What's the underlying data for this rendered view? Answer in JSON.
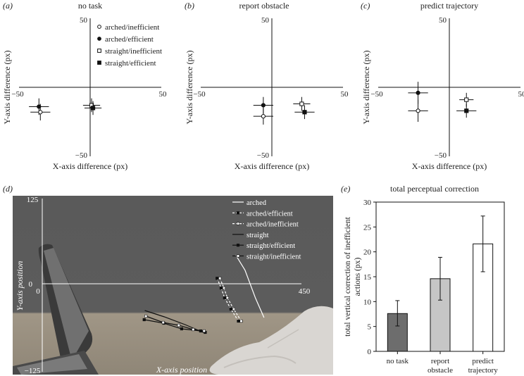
{
  "chart_data": [
    {
      "type": "scatter",
      "panel_label": "(a)",
      "title": "no task",
      "xlabel": "X-axis difference (px)",
      "ylabel": "Y-axis difference (px)",
      "xlim": [
        -50,
        50
      ],
      "ylim": [
        -50,
        50
      ],
      "tick_labels": {
        "xmin": "−50",
        "xmax": "50",
        "ymax": "50",
        "ymin": "−50"
      },
      "legend": [
        {
          "name": "arched/inefficient",
          "marker": "open-circle"
        },
        {
          "name": "arched/efficient",
          "marker": "filled-circle"
        },
        {
          "name": "straight/inefficient",
          "marker": "open-square"
        },
        {
          "name": "straight/efficient",
          "marker": "filled-square"
        }
      ],
      "series": [
        {
          "name": "arched/efficient",
          "marker": "filled-circle",
          "x": -36,
          "y": -14,
          "xerr": 7,
          "yerr": 6
        },
        {
          "name": "arched/inefficient",
          "marker": "open-circle",
          "x": -35,
          "y": -18,
          "xerr": 7,
          "yerr": 6
        },
        {
          "name": "straight/inefficient",
          "marker": "open-square",
          "x": 1,
          "y": -13,
          "xerr": 6,
          "yerr": 5
        },
        {
          "name": "straight/efficient",
          "marker": "filled-square",
          "x": 2,
          "y": -15,
          "xerr": 6,
          "yerr": 5
        }
      ]
    },
    {
      "type": "scatter",
      "panel_label": "(b)",
      "title": "report obstacle",
      "xlabel": "X-axis difference (px)",
      "ylabel": "Y-axis difference (px)",
      "xlim": [
        -50,
        50
      ],
      "ylim": [
        -50,
        50
      ],
      "tick_labels": {
        "xmin": "−50",
        "xmax": "50",
        "ymax": "50",
        "ymin": "−50"
      },
      "series": [
        {
          "name": "arched/efficient",
          "marker": "filled-circle",
          "x": -6,
          "y": -13,
          "xerr": 7,
          "yerr": 6
        },
        {
          "name": "arched/inefficient",
          "marker": "open-circle",
          "x": -6,
          "y": -21,
          "xerr": 7,
          "yerr": 6
        },
        {
          "name": "straight/inefficient",
          "marker": "open-square",
          "x": 21,
          "y": -12,
          "xerr": 6,
          "yerr": 5
        },
        {
          "name": "straight/efficient",
          "marker": "filled-square",
          "x": 23,
          "y": -18,
          "xerr": 7,
          "yerr": 5
        }
      ]
    },
    {
      "type": "scatter",
      "panel_label": "(c)",
      "title": "predict trajectory",
      "xlabel": "X-axis difference (px)",
      "ylabel": "Y-axis difference (px)",
      "xlim": [
        -50,
        50
      ],
      "ylim": [
        -50,
        50
      ],
      "tick_labels": {
        "xmin": "−50",
        "xmax": "50",
        "ymax": "50",
        "ymin": "−50"
      },
      "series": [
        {
          "name": "arched/efficient",
          "marker": "filled-circle",
          "x": -22,
          "y": -4,
          "xerr": 7,
          "yerr": 8
        },
        {
          "name": "arched/inefficient",
          "marker": "open-circle",
          "x": -22,
          "y": -17,
          "xerr": 7,
          "yerr": 8
        },
        {
          "name": "straight/inefficient",
          "marker": "open-square",
          "x": 12,
          "y": -9,
          "xerr": 5,
          "yerr": 5
        },
        {
          "name": "straight/efficient",
          "marker": "filled-square",
          "x": 12,
          "y": -17,
          "xerr": 7,
          "yerr": 5
        }
      ]
    },
    {
      "type": "line",
      "panel_label": "(d)",
      "xlabel": "X-axis position",
      "ylabel": "Y-axis position",
      "xlim": [
        0,
        450
      ],
      "ylim": [
        -125,
        125
      ],
      "tick_labels": {
        "x0": "0",
        "xmax": "450",
        "ymax": "125",
        "y0": "0",
        "ymin": "−125"
      },
      "legend": [
        {
          "name": "arched",
          "style": "solid-white"
        },
        {
          "name": "arched/efficient",
          "style": "dashed-white-black-dots"
        },
        {
          "name": "arched/inefficient",
          "style": "dashed-white-white-dots"
        },
        {
          "name": "straight",
          "style": "solid-black"
        },
        {
          "name": "straight/efficient",
          "style": "solid-black-black-dots"
        },
        {
          "name": "straight/inefficient",
          "style": "solid-black-white-dots"
        }
      ],
      "series": [
        {
          "name": "arched",
          "x": [
            336,
            352,
            370,
            385
          ],
          "y": [
            42,
            20,
            -20,
            -48
          ]
        },
        {
          "name": "arched/efficient",
          "x": [
            306,
            313,
            319,
            330,
            343
          ],
          "y": [
            8,
            -6,
            -20,
            -36,
            -53
          ]
        },
        {
          "name": "arched/inefficient",
          "x": [
            306,
            313,
            319,
            330,
            343
          ],
          "y": [
            8,
            -6,
            -20,
            -36,
            -53
          ]
        },
        {
          "name": "straight",
          "x": [
            178,
            212,
            248,
            282
          ],
          "y": [
            -38,
            -47,
            -58,
            -70
          ]
        },
        {
          "name": "straight/efficient",
          "x": [
            177,
            211,
            242,
            275,
            283
          ],
          "y": [
            -51,
            -56,
            -64,
            -67,
            -69
          ]
        },
        {
          "name": "straight/inefficient",
          "x": [
            180,
            210,
            237,
            262,
            281
          ],
          "y": [
            -46,
            -55,
            -59,
            -65,
            -67
          ]
        }
      ]
    },
    {
      "type": "bar",
      "panel_label": "(e)",
      "title": "total perceptual correction",
      "ylabel": "total vertical correction of inefficient actions (px)",
      "ylim": [
        0,
        30
      ],
      "yticks": [
        0,
        5,
        10,
        15,
        20,
        25,
        30
      ],
      "categories": [
        "no task",
        "report obstacle",
        "predict trajectory"
      ],
      "category_lines": [
        [
          "no task"
        ],
        [
          "report",
          "obstacle"
        ],
        [
          "predict",
          "trajectory"
        ]
      ],
      "values": [
        7.6,
        14.6,
        21.6
      ],
      "errors": [
        [
          5.1,
          10.2
        ],
        [
          10.3,
          18.9
        ],
        [
          16.0,
          27.2
        ]
      ],
      "colors": [
        "#6d6d6d",
        "#c6c6c6",
        "#ffffff"
      ]
    }
  ]
}
